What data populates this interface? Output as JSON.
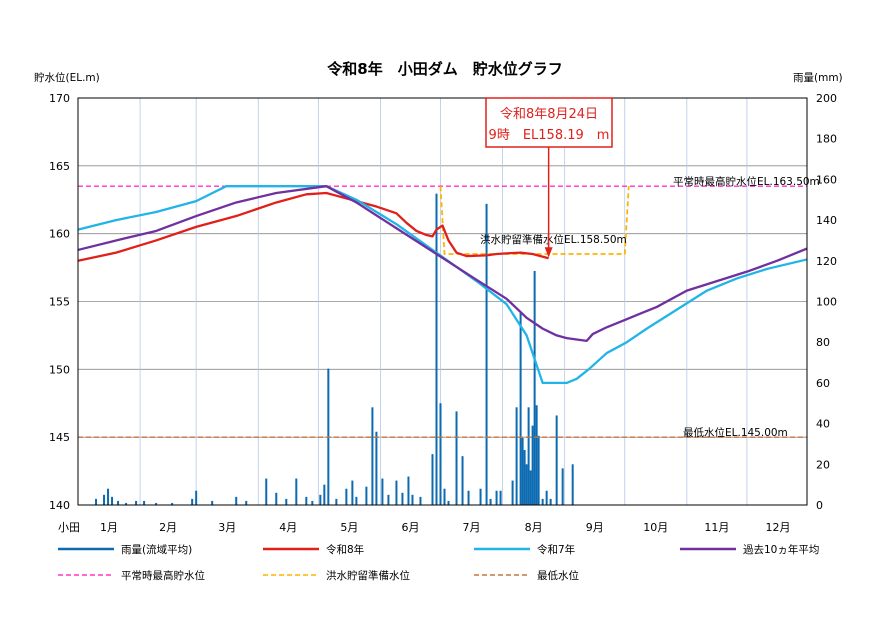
{
  "chart_data": {
    "type": "line",
    "title": "令和8年　小田ダム　貯水位グラフ",
    "ylabel_left": "貯水位(EL.m)",
    "ylabel_right": "雨量(mm)",
    "ylim_left": [
      140,
      170
    ],
    "ylim_right": [
      0,
      200
    ],
    "yticks_left": [
      "140",
      "145",
      "150",
      "155",
      "160",
      "165",
      "170"
    ],
    "yticks_right": [
      "0",
      "20",
      "40",
      "60",
      "80",
      "100",
      "120",
      "140",
      "160",
      "180",
      "200"
    ],
    "x_axis_prefix": "小田",
    "months": [
      "1月",
      "2月",
      "3月",
      "4月",
      "5月",
      "6月",
      "7月",
      "8月",
      "9月",
      "10月",
      "11月",
      "12月"
    ],
    "callout": {
      "line1": "令和8年8月24日",
      "line2": "9時　EL158.19　m",
      "day": 236,
      "value": 158.19
    },
    "reference_lines": [
      {
        "label": "平常時最高貯水位EL.163.50m",
        "value": 163.5,
        "color": "#ff33cc"
      },
      {
        "label": "最低水位EL.145.00m",
        "value": 145.0,
        "color": "#c8753a"
      }
    ],
    "flood_label": "洪水貯留準備水位EL.158.50m",
    "flood_line": {
      "color": "#ffb400",
      "days": [
        182,
        184,
        274,
        276
      ],
      "values": [
        163.5,
        158.5,
        158.5,
        163.5
      ]
    },
    "series": [
      {
        "name": "令和8年",
        "color": "#e0201b",
        "points": [
          [
            1,
            158.0
          ],
          [
            20,
            158.6
          ],
          [
            40,
            159.5
          ],
          [
            60,
            160.5
          ],
          [
            80,
            161.3
          ],
          [
            100,
            162.3
          ],
          [
            115,
            162.9
          ],
          [
            125,
            163.0
          ],
          [
            130,
            162.8
          ],
          [
            140,
            162.4
          ],
          [
            150,
            162.0
          ],
          [
            160,
            161.5
          ],
          [
            165,
            160.8
          ],
          [
            170,
            160.2
          ],
          [
            175,
            159.9
          ],
          [
            178,
            159.8
          ],
          [
            180,
            160.3
          ],
          [
            183,
            160.6
          ],
          [
            186,
            159.5
          ],
          [
            190,
            158.6
          ],
          [
            195,
            158.35
          ],
          [
            205,
            158.4
          ],
          [
            210,
            158.5
          ],
          [
            215,
            158.55
          ],
          [
            222,
            158.6
          ],
          [
            228,
            158.5
          ],
          [
            236,
            158.19
          ]
        ]
      },
      {
        "name": "令和7年",
        "color": "#22b4e6",
        "points": [
          [
            1,
            160.3
          ],
          [
            20,
            161.0
          ],
          [
            40,
            161.6
          ],
          [
            60,
            162.4
          ],
          [
            75,
            163.5
          ],
          [
            125,
            163.5
          ],
          [
            140,
            162.5
          ],
          [
            160,
            160.7
          ],
          [
            180,
            158.6
          ],
          [
            200,
            156.5
          ],
          [
            215,
            154.8
          ],
          [
            225,
            152.5
          ],
          [
            233,
            149.0
          ],
          [
            245,
            149.0
          ],
          [
            250,
            149.3
          ],
          [
            256,
            150.0
          ],
          [
            265,
            151.2
          ],
          [
            275,
            152.0
          ],
          [
            285,
            153.0
          ],
          [
            300,
            154.4
          ],
          [
            315,
            155.8
          ],
          [
            330,
            156.7
          ],
          [
            345,
            157.4
          ],
          [
            365,
            158.1
          ]
        ]
      },
      {
        "name": "過去10ヵ年平均",
        "color": "#7030a0",
        "points": [
          [
            1,
            158.8
          ],
          [
            20,
            159.5
          ],
          [
            40,
            160.2
          ],
          [
            60,
            161.3
          ],
          [
            80,
            162.3
          ],
          [
            100,
            163.0
          ],
          [
            125,
            163.5
          ],
          [
            140,
            162.3
          ],
          [
            160,
            160.4
          ],
          [
            180,
            158.5
          ],
          [
            200,
            156.6
          ],
          [
            215,
            155.2
          ],
          [
            225,
            153.8
          ],
          [
            233,
            153.0
          ],
          [
            240,
            152.5
          ],
          [
            245,
            152.3
          ],
          [
            255,
            152.1
          ],
          [
            258,
            152.6
          ],
          [
            265,
            153.1
          ],
          [
            275,
            153.7
          ],
          [
            290,
            154.6
          ],
          [
            305,
            155.8
          ],
          [
            320,
            156.5
          ],
          [
            335,
            157.2
          ],
          [
            350,
            158.0
          ],
          [
            365,
            158.9
          ]
        ]
      }
    ],
    "rain_series": {
      "name": "雨量(流域平均)",
      "color": "#0b6ab0",
      "points": [
        [
          10,
          3
        ],
        [
          14,
          5
        ],
        [
          16,
          8
        ],
        [
          18,
          4
        ],
        [
          21,
          2
        ],
        [
          25,
          1
        ],
        [
          30,
          2
        ],
        [
          34,
          2
        ],
        [
          40,
          1
        ],
        [
          48,
          1
        ],
        [
          58,
          3
        ],
        [
          60,
          7
        ],
        [
          68,
          2
        ],
        [
          80,
          4
        ],
        [
          85,
          2
        ],
        [
          95,
          13
        ],
        [
          100,
          6
        ],
        [
          105,
          3
        ],
        [
          110,
          13
        ],
        [
          115,
          4
        ],
        [
          118,
          2
        ],
        [
          122,
          5
        ],
        [
          124,
          10
        ],
        [
          126,
          67
        ],
        [
          130,
          3
        ],
        [
          135,
          8
        ],
        [
          138,
          12
        ],
        [
          140,
          4
        ],
        [
          145,
          9
        ],
        [
          148,
          48
        ],
        [
          150,
          36
        ],
        [
          153,
          13
        ],
        [
          156,
          5
        ],
        [
          160,
          12
        ],
        [
          163,
          6
        ],
        [
          166,
          14
        ],
        [
          168,
          5
        ],
        [
          172,
          4
        ],
        [
          178,
          25
        ],
        [
          180,
          153
        ],
        [
          182,
          50
        ],
        [
          184,
          8
        ],
        [
          186,
          2
        ],
        [
          190,
          46
        ],
        [
          193,
          24
        ],
        [
          196,
          7
        ],
        [
          202,
          8
        ],
        [
          205,
          148
        ],
        [
          207,
          3
        ],
        [
          210,
          7
        ],
        [
          212,
          7
        ],
        [
          218,
          12
        ],
        [
          220,
          48
        ],
        [
          222,
          95
        ],
        [
          223,
          33
        ],
        [
          224,
          27
        ],
        [
          225,
          20
        ],
        [
          226,
          48
        ],
        [
          227,
          17
        ],
        [
          228,
          39
        ],
        [
          229,
          115
        ],
        [
          230,
          49
        ],
        [
          231,
          34
        ],
        [
          233,
          3
        ],
        [
          235,
          7
        ],
        [
          237,
          3
        ],
        [
          240,
          44
        ],
        [
          243,
          18
        ],
        [
          248,
          20
        ]
      ]
    },
    "legend": [
      {
        "label": "雨量(流域平均)",
        "color": "#0b6ab0",
        "dash": false
      },
      {
        "label": "令和8年",
        "color": "#e0201b",
        "dash": false
      },
      {
        "label": "令和7年",
        "color": "#22b4e6",
        "dash": false
      },
      {
        "label": "過去10ヵ年平均",
        "color": "#7030a0",
        "dash": false
      },
      {
        "label": "平常時最高貯水位",
        "color": "#ff33cc",
        "dash": true
      },
      {
        "label": "洪水貯留準備水位",
        "color": "#ffb400",
        "dash": true
      },
      {
        "label": "最低水位",
        "color": "#c8753a",
        "dash": true
      }
    ]
  }
}
